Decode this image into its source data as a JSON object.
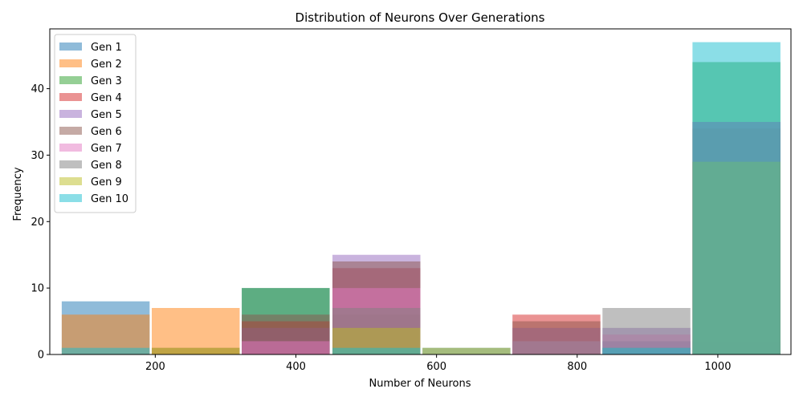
{
  "chart_data": {
    "type": "bar",
    "title": "Distribution of Neurons Over Generations",
    "xlabel": "Number of Neurons",
    "ylabel": "Frequency",
    "xlim": [
      50,
      1104
    ],
    "ylim": [
      0,
      49
    ],
    "xticks": [
      200,
      400,
      600,
      800,
      1000
    ],
    "yticks": [
      0,
      10,
      20,
      30,
      40
    ],
    "bin_edges": [
      67,
      195,
      323,
      452,
      580,
      708,
      836,
      964,
      1092
    ],
    "bin_width": 125,
    "legend_position": "upper-left",
    "alpha": 0.5,
    "grid": false,
    "series": [
      {
        "name": "Gen 1",
        "color": "#1f77b4",
        "bins": [
          0,
          2,
          4,
          6,
          7
        ],
        "values": [
          8,
          10,
          1,
          2,
          2
        ]
      },
      {
        "name": "Gen 2",
        "color": "#ff7f0e",
        "bins": [
          0,
          1,
          3,
          5,
          7
        ],
        "values": [
          6,
          7,
          4,
          0,
          0
        ]
      },
      {
        "name": "Gen 3",
        "color": "#2ca02c",
        "bins": [
          2,
          3,
          4,
          5,
          6,
          7
        ],
        "values": [
          10,
          6,
          0,
          0,
          1,
          44
        ]
      },
      {
        "name": "Gen 4",
        "color": "#d62728",
        "bins": [
          2,
          3,
          5,
          7
        ],
        "values": [
          5,
          13,
          6,
          29
        ]
      },
      {
        "name": "Gen 5",
        "color": "#9467bd",
        "bins": [
          2,
          3,
          5,
          6,
          7
        ],
        "values": [
          4,
          15,
          4,
          4,
          35
        ]
      },
      {
        "name": "Gen 6",
        "color": "#8c564b",
        "bins": [
          1,
          2,
          3,
          5,
          7
        ],
        "values": [
          1,
          6,
          14,
          5,
          34
        ]
      },
      {
        "name": "Gen 7",
        "color": "#e377c2",
        "bins": [
          2,
          3,
          5,
          6,
          7
        ],
        "values": [
          2,
          10,
          2,
          3,
          35
        ]
      },
      {
        "name": "Gen 8",
        "color": "#7f7f7f",
        "bins": [
          3,
          5,
          6,
          7
        ],
        "values": [
          7,
          2,
          7,
          35
        ]
      },
      {
        "name": "Gen 9",
        "color": "#bcbd22",
        "bins": [
          1,
          3,
          4,
          7
        ],
        "values": [
          1,
          4,
          1,
          29
        ]
      },
      {
        "name": "Gen 10",
        "color": "#17becf",
        "bins": [
          0,
          3,
          6,
          7
        ],
        "values": [
          1,
          1,
          1,
          47
        ]
      }
    ]
  }
}
